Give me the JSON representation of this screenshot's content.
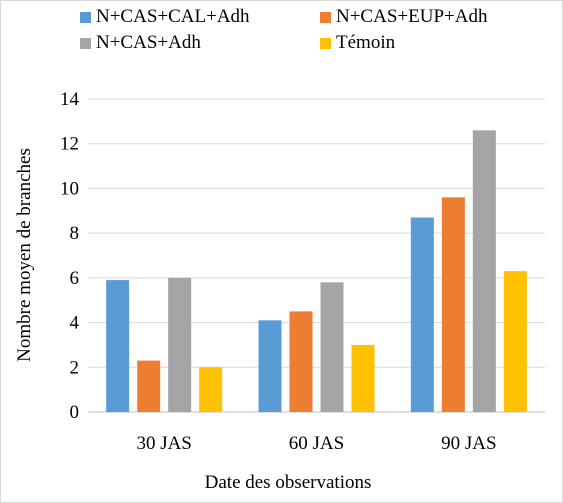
{
  "chart_data": {
    "type": "bar",
    "categories": [
      "30 JAS",
      "60 JAS",
      "90 JAS"
    ],
    "series": [
      {
        "name": "N+CAS+CAL+Adh",
        "color": "#5B9BD5",
        "values": [
          5.9,
          4.1,
          8.7
        ]
      },
      {
        "name": "N+CAS+EUP+Adh",
        "color": "#ED7D31",
        "values": [
          2.3,
          4.5,
          9.6
        ]
      },
      {
        "name": "N+CAS+Adh",
        "color": "#A5A5A5",
        "values": [
          6.0,
          5.8,
          12.6
        ]
      },
      {
        "name": "Témoin",
        "color": "#FFC000",
        "values": [
          2.0,
          3.0,
          6.3
        ]
      }
    ],
    "xlabel": "Date des observations",
    "ylabel": "Nombre moyen de branches",
    "ylim": [
      0,
      14
    ],
    "yticks": [
      0,
      2,
      4,
      6,
      8,
      10,
      12,
      14
    ],
    "grid": true,
    "legend_position": "top"
  }
}
